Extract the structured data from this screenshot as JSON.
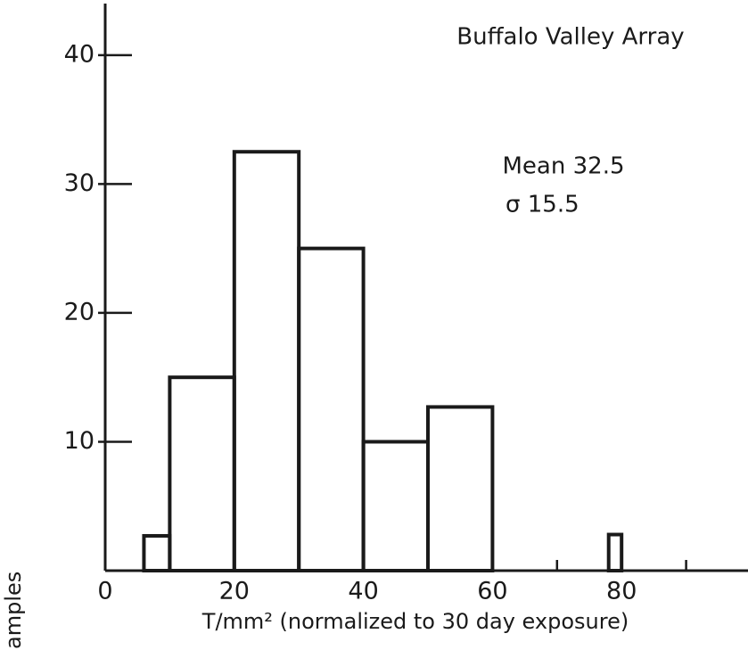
{
  "chart_data": {
    "type": "histogram",
    "title": "Buffalo Valley Array",
    "annotations": [
      "Mean 32.5",
      "σ 15.5"
    ],
    "xlabel": "T/mm² (normalized to 30 day exposure)",
    "ylabel": "amples",
    "bins": [
      6,
      10,
      20,
      30,
      40,
      50,
      60,
      78,
      80
    ],
    "counts": [
      2.7,
      15,
      32.5,
      25,
      10,
      12.7,
      0,
      2.8
    ],
    "color": "#1a1a1a",
    "xlim": [
      0,
      100
    ],
    "ylim": [
      0,
      44
    ],
    "xticks": [
      0,
      20,
      40,
      60,
      80
    ],
    "x_minor_ticks": [
      10,
      30,
      50,
      70,
      90
    ],
    "yticks": [
      10,
      20,
      30,
      40
    ]
  }
}
